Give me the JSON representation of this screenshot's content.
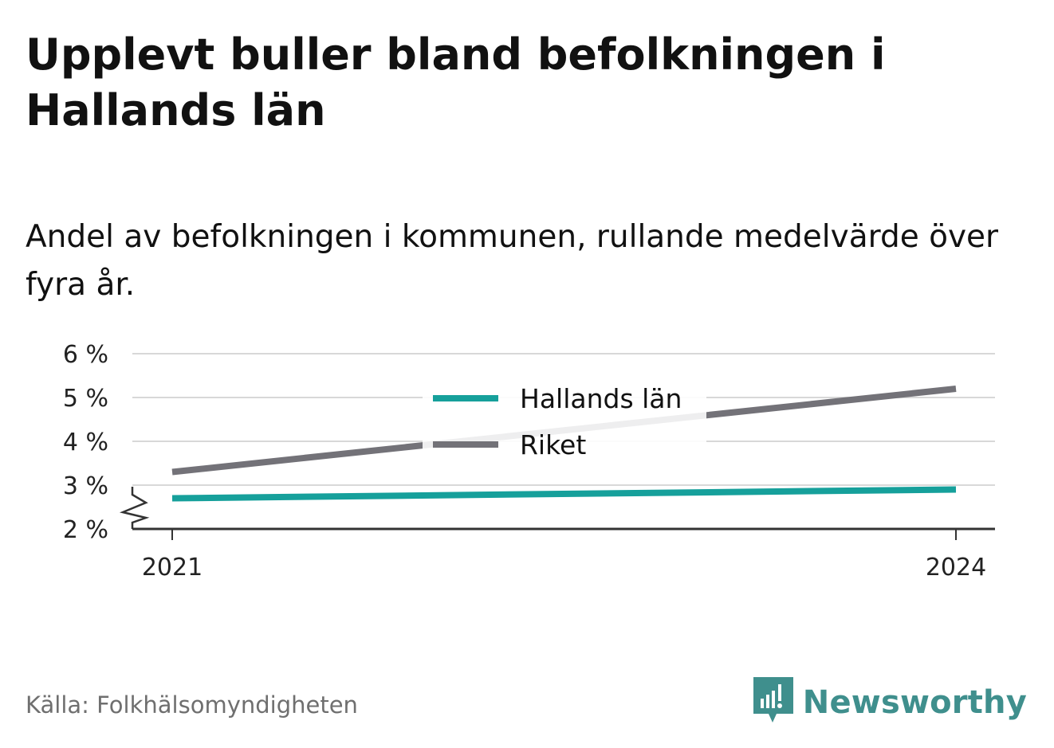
{
  "header": {
    "title": "Upplevt buller bland befolkningen i Hallands län",
    "subtitle": "Andel av befolkningen i kommunen, rullande medelvärde över fyra år."
  },
  "footer": {
    "source": "Källa: Folkhälsomyndigheten",
    "brand": "Newsworthy",
    "brand_icon": "bar-chart-speech-bubble-icon"
  },
  "colors": {
    "hallands": "#16a09b",
    "riket": "#737278",
    "grid": "#d8d8d8",
    "axis": "#333333",
    "brand": "#3f8f8d"
  },
  "chart_data": {
    "type": "line",
    "x": [
      "2021",
      "2024"
    ],
    "ylim": [
      2,
      6
    ],
    "yticks": [
      2,
      3,
      4,
      5,
      6
    ],
    "ytick_labels": [
      "2 %",
      "3 %",
      "4 %",
      "5 %",
      "6 %"
    ],
    "axis_break": true,
    "grid": true,
    "legend_position": "top-center",
    "series": [
      {
        "name": "Hallands län",
        "values": [
          2.7,
          2.9
        ],
        "color": "#16a09b"
      },
      {
        "name": "Riket",
        "values": [
          3.3,
          5.2
        ],
        "color": "#737278"
      }
    ]
  }
}
